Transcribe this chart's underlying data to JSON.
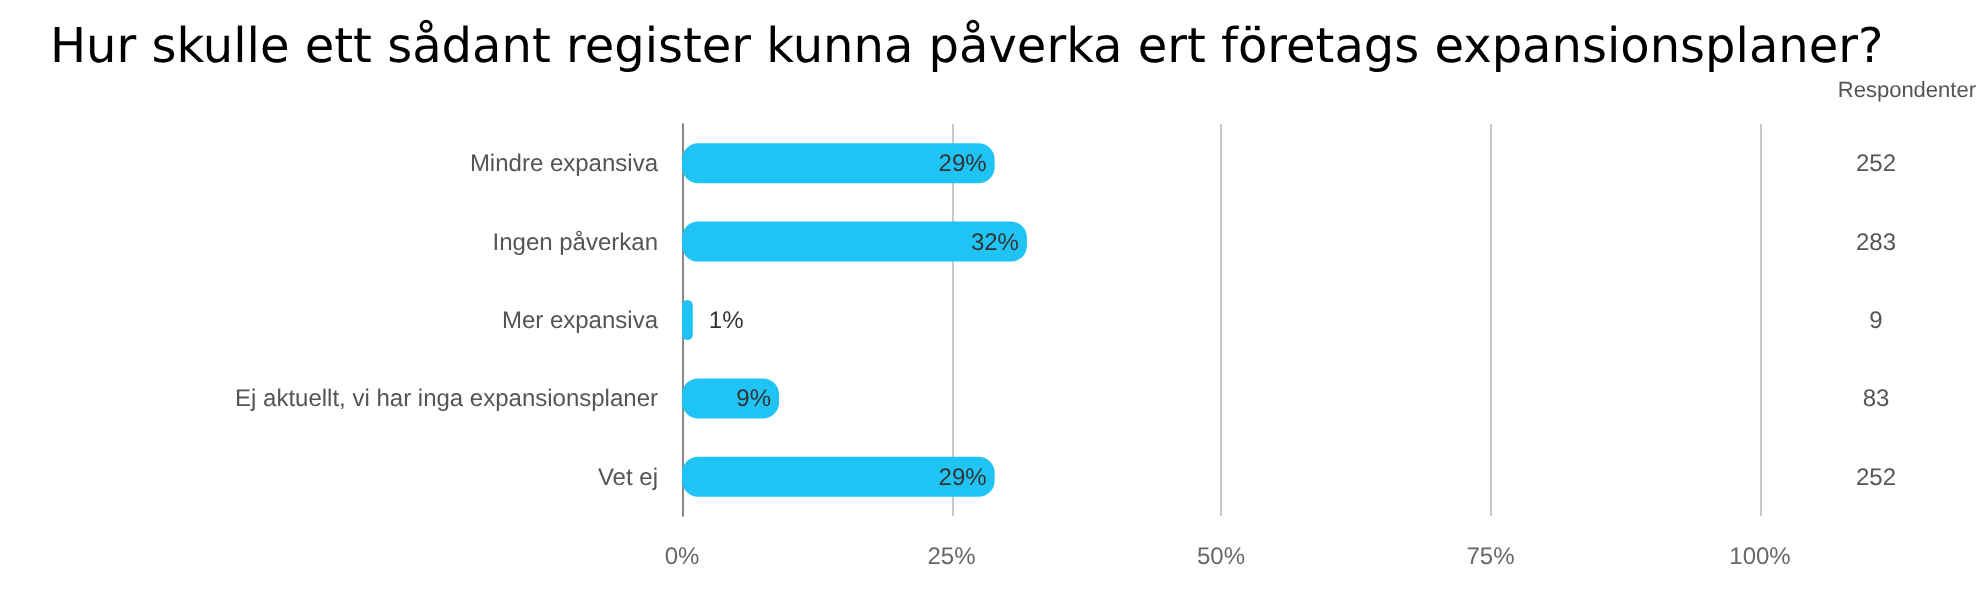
{
  "chart_data": {
    "type": "bar",
    "orientation": "horizontal",
    "title": "Hur skulle ett sådant register kunna påverka ert företags expansionsplaner?",
    "categories": [
      "Mindre expansiva",
      "Ingen påverkan",
      "Mer expansiva",
      "Ej aktuellt, vi har inga expansionsplaner",
      "Vet ej"
    ],
    "values": [
      29,
      32,
      1,
      9,
      29
    ],
    "value_labels": [
      "29%",
      "32%",
      "1%",
      "9%",
      "29%"
    ],
    "color": "#20c4f4",
    "xlim": [
      0,
      100
    ],
    "xticks": [
      {
        "value": 0,
        "label": "0%"
      },
      {
        "value": 25,
        "label": "25%"
      },
      {
        "value": 50,
        "label": "50%"
      },
      {
        "value": 75,
        "label": "75%"
      },
      {
        "value": 100,
        "label": "100%"
      }
    ],
    "grid": "x",
    "annotations": [
      "Respondenter",
      "252",
      "283",
      "9",
      "83",
      "252"
    ]
  }
}
